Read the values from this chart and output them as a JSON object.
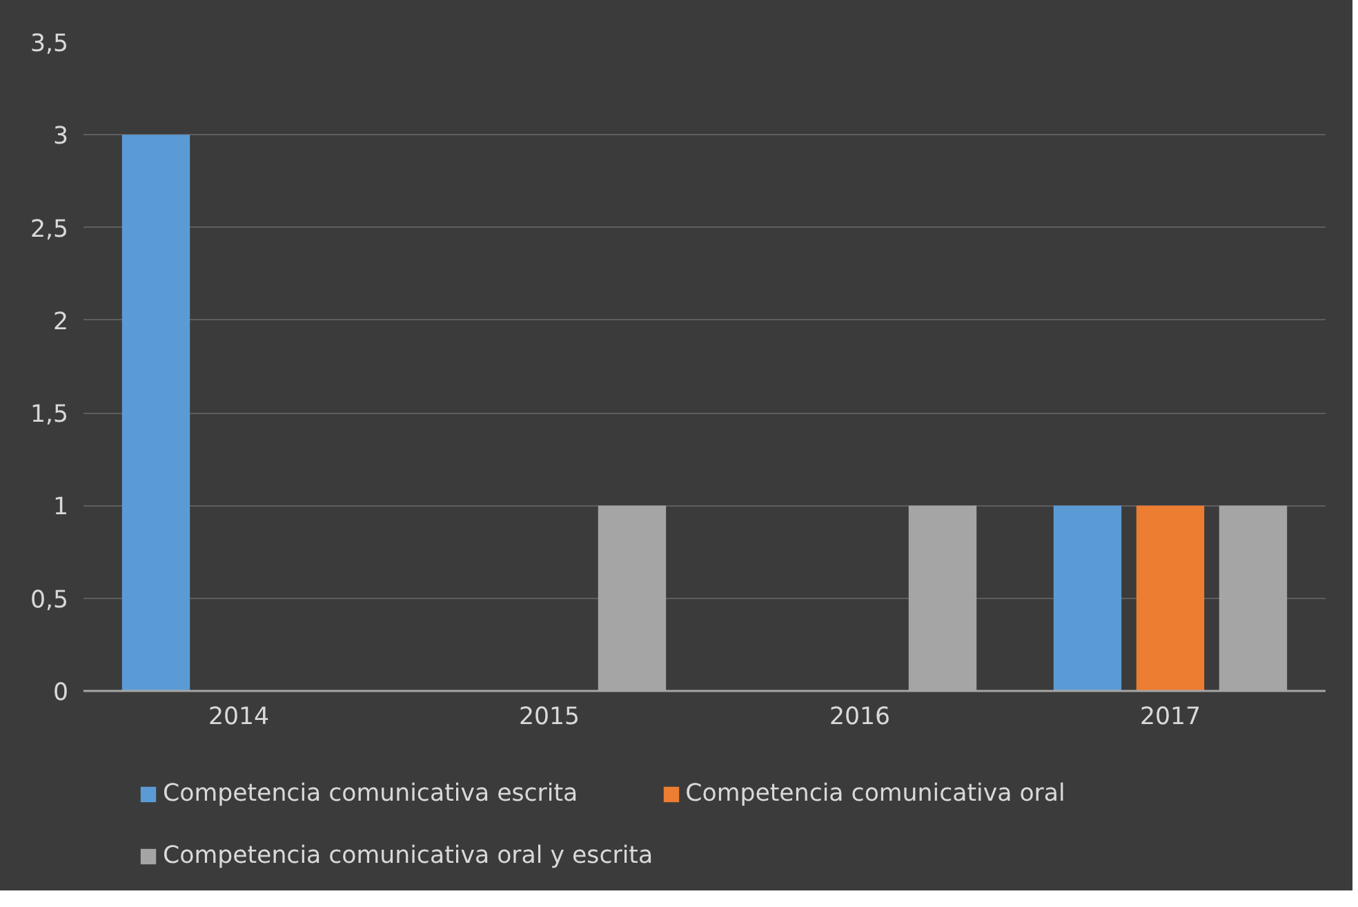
{
  "chart_data": {
    "type": "bar",
    "categories": [
      "2014",
      "2015",
      "2016",
      "2017"
    ],
    "series": [
      {
        "name": "Competencia comunicativa escrita",
        "color": "#5b9bd5",
        "values": [
          3,
          0,
          0,
          1
        ]
      },
      {
        "name": "Competencia comunicativa oral",
        "color": "#ed7d31",
        "values": [
          0,
          0,
          0,
          1
        ]
      },
      {
        "name": "Competencia comunicativa oral y escrita",
        "color": "#a5a5a5",
        "values": [
          0,
          1,
          1,
          1
        ]
      }
    ],
    "ylim": [
      0,
      3.5
    ],
    "yticks": [
      0,
      {
        "value": 0.5,
        "label": "0,5"
      },
      1,
      {
        "value": 1.5,
        "label": "1,5"
      },
      2,
      {
        "value": 2.5,
        "label": "2,5"
      },
      3,
      {
        "value": 3.5,
        "label": "3,5"
      }
    ],
    "grid": "y",
    "legend": "bottom"
  }
}
